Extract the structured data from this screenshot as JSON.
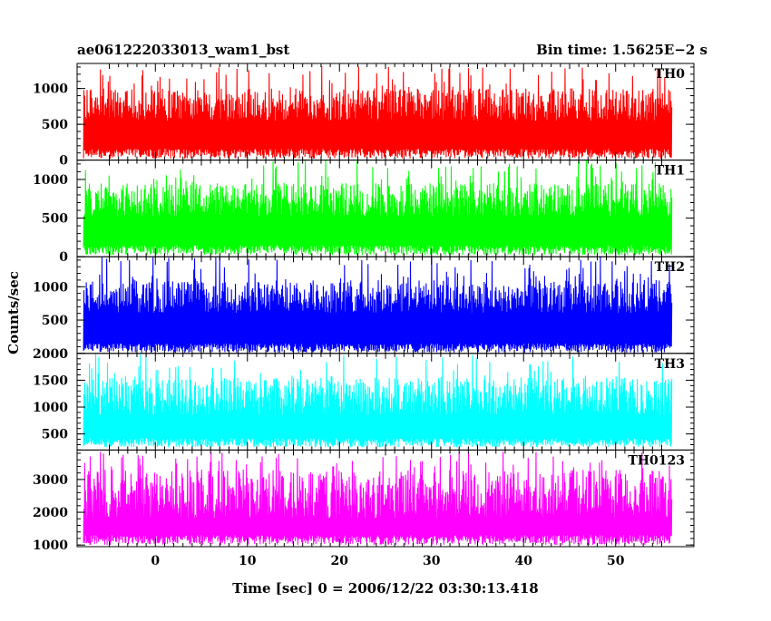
{
  "chart_data": {
    "type": "line",
    "title": "ae061222033013_wam1_bst",
    "subtitle": "Bin time: 1.5625E−2 s",
    "xlabel": "Time [sec] 0 = 2006/12/22 03:30:13.418",
    "ylabel": "Counts/sec",
    "xlim": [
      -8.5,
      58.5
    ],
    "x_range_data": [
      -7.8,
      56.1
    ],
    "x_ticks": [
      0,
      10,
      20,
      30,
      40,
      50
    ],
    "grid": false,
    "panels": [
      {
        "name": "TH0",
        "color": "#ff0000",
        "ylim": [
          0,
          1350
        ],
        "y_ticks": [
          0,
          500,
          1000
        ],
        "signal": {
          "floor_min": 20,
          "floor_max": 160,
          "peak_typical": 1000,
          "peak_max": 1350
        }
      },
      {
        "name": "TH1",
        "color": "#00ff00",
        "ylim": [
          0,
          1250
        ],
        "y_ticks": [
          0,
          500,
          1000
        ],
        "signal": {
          "floor_min": 20,
          "floor_max": 150,
          "peak_typical": 950,
          "peak_max": 1250
        }
      },
      {
        "name": "TH2",
        "color": "#0000ff",
        "ylim": [
          0,
          1450
        ],
        "y_ticks": [
          0,
          500,
          1000
        ],
        "signal": {
          "floor_min": 10,
          "floor_max": 150,
          "peak_typical": 1100,
          "peak_max": 1450
        }
      },
      {
        "name": "TH3",
        "color": "#00ffff",
        "ylim": [
          200,
          2000
        ],
        "y_ticks": [
          500,
          1000,
          1500,
          2000
        ],
        "signal": {
          "floor_min": 250,
          "floor_max": 420,
          "peak_typical": 1550,
          "peak_max": 2000
        }
      },
      {
        "name": "TH0123",
        "color": "#ff00ff",
        "ylim": [
          950,
          3900
        ],
        "y_ticks": [
          1000,
          2000,
          3000
        ],
        "signal": {
          "floor_min": 1000,
          "floor_max": 1300,
          "peak_typical": 3300,
          "peak_max": 3850
        }
      }
    ]
  }
}
